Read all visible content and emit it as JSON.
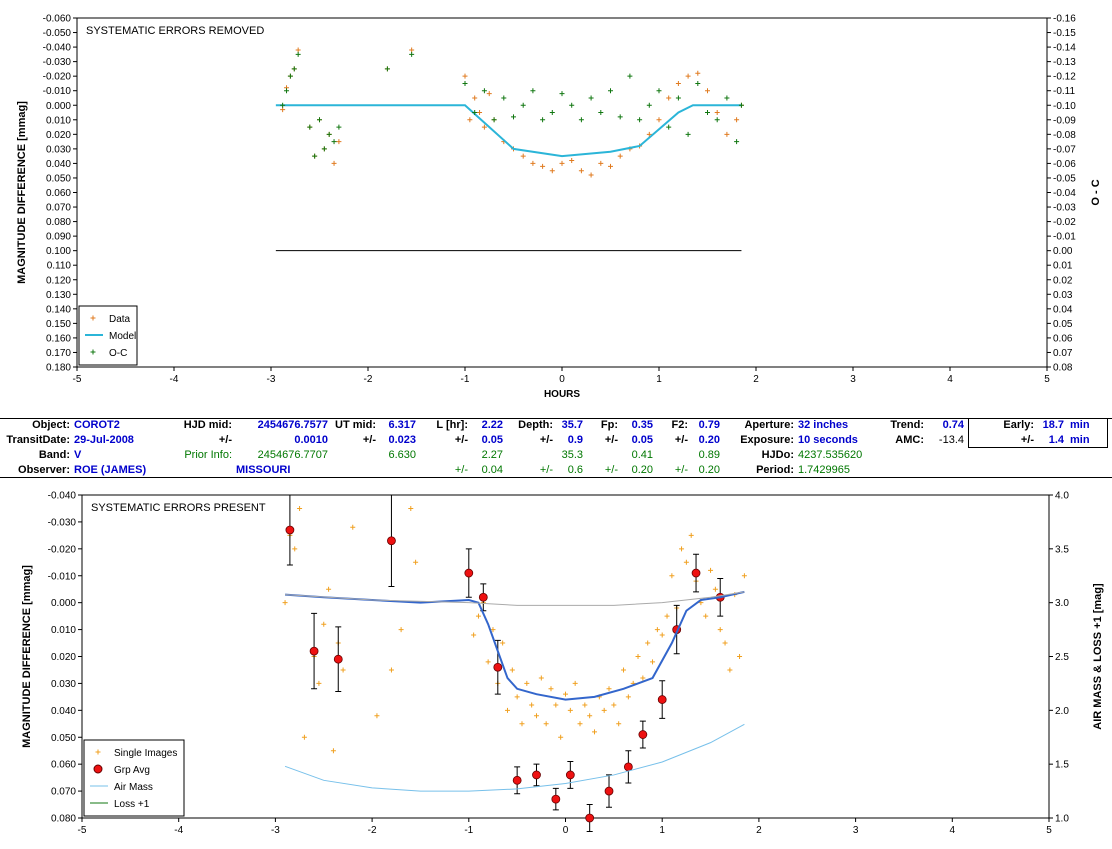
{
  "top_chart": {
    "title_box": "SYSTEMATIC ERRORS REMOVED",
    "ylabel_left": "MAGNITUDE DIFFERENCE [mmag]",
    "ylabel_right": "O - C",
    "xlabel": "HOURS",
    "legend": [
      "Data",
      "Model",
      "O-C"
    ]
  },
  "bottom_chart": {
    "title_box": "SYSTEMATIC ERRORS PRESENT",
    "ylabel_left": "MAGNITUDE DIFFERENCE [mmag]",
    "ylabel_right": "AIR MASS & LOSS +1 [mag]",
    "legend": [
      "Single Images",
      "Grp Avg",
      "Air Mass",
      "Loss +1"
    ]
  },
  "info_table": {
    "object_label": "Object:",
    "object": "COROT2",
    "transit_label": "TransitDate:",
    "transit": "29-Jul-2008",
    "band_label": "Band:",
    "band": "V",
    "observer_label": "Observer:",
    "observer": "ROE (JAMES)",
    "hjd_label": "HJD mid:",
    "hjd": "2454676.7577",
    "pm": "+/-",
    "hjd_err": "0.0010",
    "prior_label": "Prior Info:",
    "prior_hjd": "2454676.7707",
    "location": "MISSOURI",
    "ut_label": "UT mid:",
    "ut": "6.317",
    "ut_err": "0.023",
    "ut_prior": "6.630",
    "l_label": "L [hr]:",
    "l": "2.22",
    "l_err": "0.05",
    "l_prior": "2.27",
    "l_prior_err": "0.04",
    "depth_label": "Depth:",
    "depth": "35.7",
    "depth_err": "0.9",
    "depth_prior": "35.3",
    "depth_prior_err": "0.6",
    "fp_label": "Fp:",
    "fp": "0.35",
    "fp_err": "0.05",
    "fp_prior": "0.41",
    "fp_prior_err": "0.20",
    "f2_label": "F2:",
    "f2": "0.79",
    "f2_err": "0.20",
    "f2_prior": "0.89",
    "f2_prior_err": "0.20",
    "aperture_label": "Aperture:",
    "aperture": "32 inches",
    "exposure_label": "Exposure:",
    "exposure": "10 seconds",
    "hjdo_label": "HJDo:",
    "hjdo": "4237.535620",
    "period_label": "Period:",
    "period": "1.7429965",
    "trend_label": "Trend:",
    "trend": "0.74",
    "amc_label": "AMC:",
    "amc": "-13.4",
    "early_label": "Early:",
    "early": "18.7",
    "early_unit": "min",
    "early_err": "1.4",
    "early_err_unit": "min"
  },
  "chart_data": [
    {
      "type": "scatter",
      "title": "SYSTEMATIC ERRORS REMOVED",
      "xlabel": "HOURS",
      "ylabel": "MAGNITUDE DIFFERENCE [mmag]",
      "y2label": "O - C",
      "xlim": [
        -5,
        5
      ],
      "ylim": [
        -0.06,
        0.18
      ],
      "y_inverted": true,
      "y2lim": [
        -0.16,
        0.08
      ],
      "x_ticks": [
        -5,
        -4,
        -3,
        -2,
        -1,
        0,
        1,
        2,
        3,
        4,
        5
      ],
      "y_tick_labels": [
        "-0.060",
        "-0.050",
        "-0.040",
        "-0.030",
        "-0.020",
        "-0.010",
        "0.000",
        "0.010",
        "0.020",
        "0.030",
        "0.040",
        "0.050",
        "0.060",
        "0.070",
        "0.080",
        "0.090",
        "0.100",
        "0.110",
        "0.120",
        "0.130",
        "0.140",
        "0.150",
        "0.160",
        "0.170",
        "0.180"
      ],
      "y2_tick_labels": [
        "-0.16",
        "-0.15",
        "-0.14",
        "-0.13",
        "-0.12",
        "-0.11",
        "-0.10",
        "-0.09",
        "-0.08",
        "-0.07",
        "-0.06",
        "-0.05",
        "-0.04",
        "-0.03",
        "-0.02",
        "-0.01",
        "0.00",
        "0.01",
        "0.02",
        "0.03",
        "0.04",
        "0.05",
        "0.06",
        "0.07",
        "0.08"
      ],
      "legend_position": "bottom-left",
      "series": [
        {
          "name": "Data",
          "color": "#e07b20",
          "marker": "+",
          "x": [
            -2.88,
            -2.84,
            -2.8,
            -2.76,
            -2.72,
            -2.6,
            -2.55,
            -2.5,
            -2.45,
            -2.4,
            -2.35,
            -2.3,
            -1.8,
            -1.55,
            -1.0,
            -0.95,
            -0.9,
            -0.85,
            -0.8,
            -0.75,
            -0.7,
            -0.6,
            -0.5,
            -0.4,
            -0.3,
            -0.2,
            -0.1,
            0.0,
            0.1,
            0.2,
            0.3,
            0.4,
            0.5,
            0.6,
            0.7,
            0.8,
            0.9,
            1.0,
            1.1,
            1.2,
            1.3,
            1.4,
            1.5,
            1.6,
            1.7,
            1.8,
            1.85
          ],
          "y": [
            0.003,
            -0.012,
            -0.02,
            -0.025,
            -0.038,
            0.015,
            0.035,
            0.01,
            0.03,
            0.02,
            0.04,
            0.025,
            -0.025,
            -0.038,
            -0.02,
            0.01,
            -0.005,
            0.005,
            0.015,
            -0.008,
            0.01,
            0.025,
            0.03,
            0.035,
            0.04,
            0.042,
            0.045,
            0.04,
            0.038,
            0.045,
            0.048,
            0.04,
            0.042,
            0.035,
            0.03,
            0.028,
            0.02,
            0.01,
            -0.005,
            -0.015,
            -0.02,
            -0.022,
            -0.01,
            0.005,
            0.02,
            0.01,
            0.0
          ]
        },
        {
          "name": "Model",
          "color": "#2bb5d8",
          "x": [
            -2.95,
            -1.0,
            -0.5,
            0.0,
            0.5,
            0.8,
            1.2,
            1.35,
            1.85
          ],
          "y": [
            0.0,
            0.0,
            0.03,
            0.035,
            0.032,
            0.028,
            0.005,
            0.0,
            0.0
          ]
        },
        {
          "name": "O-C",
          "color": "#117711",
          "marker": "+",
          "x": [
            -2.88,
            -2.84,
            -2.8,
            -2.76,
            -2.72,
            -2.6,
            -2.55,
            -2.5,
            -2.45,
            -2.4,
            -2.35,
            -2.3,
            -1.8,
            -1.55,
            -1.0,
            -0.9,
            -0.8,
            -0.7,
            -0.6,
            -0.5,
            -0.4,
            -0.3,
            -0.2,
            -0.1,
            0.0,
            0.1,
            0.2,
            0.3,
            0.4,
            0.5,
            0.6,
            0.7,
            0.8,
            0.9,
            1.0,
            1.1,
            1.2,
            1.3,
            1.4,
            1.5,
            1.6,
            1.7,
            1.8,
            1.85
          ],
          "y": [
            0.0,
            -0.01,
            -0.02,
            -0.025,
            -0.035,
            0.015,
            0.035,
            0.01,
            0.03,
            0.02,
            0.025,
            0.015,
            -0.025,
            -0.035,
            -0.015,
            0.005,
            -0.01,
            0.01,
            -0.005,
            0.008,
            0.0,
            -0.01,
            0.01,
            0.005,
            -0.008,
            0.0,
            0.01,
            -0.005,
            0.005,
            -0.01,
            0.008,
            -0.02,
            0.01,
            0.0,
            -0.01,
            0.015,
            -0.005,
            0.02,
            -0.015,
            0.005,
            0.01,
            -0.005,
            0.025,
            0.0
          ]
        }
      ]
    },
    {
      "type": "scatter",
      "title": "SYSTEMATIC ERRORS PRESENT",
      "xlabel": "",
      "ylabel": "MAGNITUDE DIFFERENCE [mmag]",
      "y2label": "AIR MASS & LOSS +1 [mag]",
      "xlim": [
        -5,
        5
      ],
      "ylim": [
        -0.04,
        0.08
      ],
      "y_inverted": true,
      "y2lim": [
        1.0,
        4.0
      ],
      "x_ticks": [
        -5,
        -4,
        -3,
        -2,
        -1,
        0,
        1,
        2,
        3,
        4,
        5
      ],
      "y_tick_labels": [
        "-0.040",
        "-0.030",
        "-0.020",
        "-0.010",
        "0.000",
        "0.010",
        "0.020",
        "0.030",
        "0.040",
        "0.050",
        "0.060",
        "0.070",
        "0.080"
      ],
      "y2_tick_labels": [
        "4.0",
        "3.5",
        "3.0",
        "2.5",
        "2.0",
        "1.5",
        "1.0"
      ],
      "legend_position": "bottom-left",
      "series": [
        {
          "name": "Single Images",
          "color": "#f0a020",
          "marker": "+",
          "x": [
            -2.9,
            -2.85,
            -2.8,
            -2.75,
            -2.7,
            -2.6,
            -2.55,
            -2.5,
            -2.45,
            -2.4,
            -2.35,
            -2.3,
            -2.2,
            -1.95,
            -1.8,
            -1.7,
            -1.6,
            -1.55,
            -1.0,
            -0.95,
            -0.9,
            -0.85,
            -0.8,
            -0.75,
            -0.7,
            -0.65,
            -0.6,
            -0.55,
            -0.5,
            -0.45,
            -0.4,
            -0.35,
            -0.3,
            -0.25,
            -0.2,
            -0.15,
            -0.1,
            -0.05,
            0.0,
            0.05,
            0.1,
            0.15,
            0.2,
            0.25,
            0.3,
            0.35,
            0.4,
            0.45,
            0.5,
            0.55,
            0.6,
            0.65,
            0.7,
            0.75,
            0.8,
            0.85,
            0.9,
            0.95,
            1.0,
            1.05,
            1.1,
            1.15,
            1.2,
            1.25,
            1.3,
            1.35,
            1.4,
            1.45,
            1.5,
            1.55,
            1.6,
            1.65,
            1.7,
            1.75,
            1.8,
            1.85
          ],
          "y": [
            0.0,
            -0.025,
            -0.02,
            -0.035,
            0.05,
            0.02,
            0.03,
            0.008,
            -0.005,
            0.055,
            0.015,
            0.025,
            -0.028,
            0.042,
            0.025,
            0.01,
            -0.035,
            -0.015,
            -0.01,
            0.012,
            0.005,
            0.0,
            0.022,
            0.01,
            0.03,
            0.015,
            0.04,
            0.025,
            0.035,
            0.045,
            0.03,
            0.038,
            0.042,
            0.028,
            0.045,
            0.032,
            0.038,
            0.05,
            0.034,
            0.04,
            0.03,
            0.045,
            0.038,
            0.042,
            0.048,
            0.035,
            0.04,
            0.032,
            0.038,
            0.045,
            0.025,
            0.035,
            0.03,
            0.02,
            0.028,
            0.015,
            0.022,
            0.01,
            0.012,
            0.005,
            -0.01,
            0.002,
            -0.02,
            -0.015,
            -0.025,
            -0.008,
            0.0,
            0.005,
            -0.012,
            -0.005,
            0.01,
            0.015,
            0.025,
            -0.003,
            0.02,
            -0.01
          ]
        },
        {
          "name": "Grp Avg",
          "color": "#ee1111",
          "marker": "dot",
          "x": [
            -2.85,
            -2.6,
            -2.35,
            -1.8,
            -1.0,
            -0.85,
            -0.7,
            -0.5,
            -0.3,
            -0.1,
            0.05,
            0.25,
            0.45,
            0.65,
            0.8,
            1.0,
            1.15,
            1.35,
            1.6
          ],
          "y": [
            -0.027,
            0.018,
            0.021,
            -0.023,
            -0.011,
            -0.002,
            0.024,
            0.066,
            0.064,
            0.073,
            0.064,
            0.08,
            0.07,
            0.061,
            0.049,
            0.036,
            0.01,
            -0.011,
            -0.002
          ],
          "err": [
            0.013,
            0.014,
            0.012,
            0.017,
            0.009,
            0.005,
            0.01,
            0.005,
            0.004,
            0.004,
            0.005,
            0.005,
            0.006,
            0.006,
            0.005,
            0.007,
            0.009,
            0.007,
            0.007
          ]
        },
        {
          "name": "Model",
          "color": "#3366cc",
          "x": [
            -2.9,
            -2.5,
            -2.0,
            -1.5,
            -1.0,
            -0.9,
            -0.8,
            -0.7,
            -0.6,
            -0.5,
            -0.3,
            0.0,
            0.3,
            0.6,
            0.9,
            1.1,
            1.25,
            1.4,
            1.6,
            1.85
          ],
          "y": [
            -0.003,
            -0.002,
            -0.001,
            0.0,
            -0.001,
            0.0,
            0.008,
            0.018,
            0.028,
            0.032,
            0.034,
            0.036,
            0.035,
            0.032,
            0.028,
            0.015,
            0.003,
            -0.001,
            -0.002,
            -0.004
          ]
        },
        {
          "name": "Air Mass",
          "color": "#77c0ea",
          "x": [
            -2.9,
            -2.5,
            -2.0,
            -1.5,
            -1.0,
            -0.5,
            0.0,
            0.5,
            1.0,
            1.5,
            1.85
          ],
          "y2": [
            1.48,
            1.35,
            1.28,
            1.25,
            1.25,
            1.27,
            1.32,
            1.4,
            1.52,
            1.7,
            1.87
          ]
        },
        {
          "name": "Gray Curve",
          "color": "#aaaaaa",
          "x": [
            -2.9,
            -2.0,
            -1.0,
            -0.5,
            0.0,
            0.5,
            1.0,
            1.5,
            1.85
          ],
          "y": [
            -0.003,
            -0.001,
            0.0,
            0.001,
            0.001,
            0.001,
            0.0,
            -0.002,
            -0.004
          ]
        },
        {
          "name": "Loss +1",
          "color": "#117711",
          "x": [],
          "y": []
        }
      ]
    }
  ]
}
